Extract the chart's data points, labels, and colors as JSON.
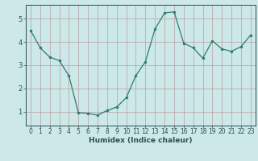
{
  "x": [
    0,
    1,
    2,
    3,
    4,
    5,
    6,
    7,
    8,
    9,
    10,
    11,
    12,
    13,
    14,
    15,
    16,
    17,
    18,
    19,
    20,
    21,
    22,
    23
  ],
  "y": [
    4.5,
    3.75,
    3.35,
    3.2,
    2.55,
    0.95,
    0.93,
    0.85,
    1.05,
    1.2,
    1.6,
    2.55,
    3.15,
    4.55,
    5.25,
    5.3,
    3.95,
    3.75,
    3.3,
    4.05,
    3.7,
    3.6,
    3.8,
    4.3
  ],
  "xlabel": "Humidex (Indice chaleur)",
  "xlim": [
    -0.5,
    23.5
  ],
  "ylim": [
    0.4,
    5.6
  ],
  "yticks": [
    1,
    2,
    3,
    4,
    5
  ],
  "xticks": [
    0,
    1,
    2,
    3,
    4,
    5,
    6,
    7,
    8,
    9,
    10,
    11,
    12,
    13,
    14,
    15,
    16,
    17,
    18,
    19,
    20,
    21,
    22,
    23
  ],
  "line_color": "#2e7d6e",
  "marker": ".",
  "marker_size": 3,
  "bg_color": "#cce8e8",
  "grid_color": "#b8a0a0",
  "axis_color": "#2d5050",
  "tick_fontsize": 5.5,
  "xlabel_fontsize": 6.5,
  "ylabel_fontsize": 6.5,
  "linewidth": 0.9,
  "figsize": [
    3.2,
    2.0
  ],
  "dpi": 100
}
